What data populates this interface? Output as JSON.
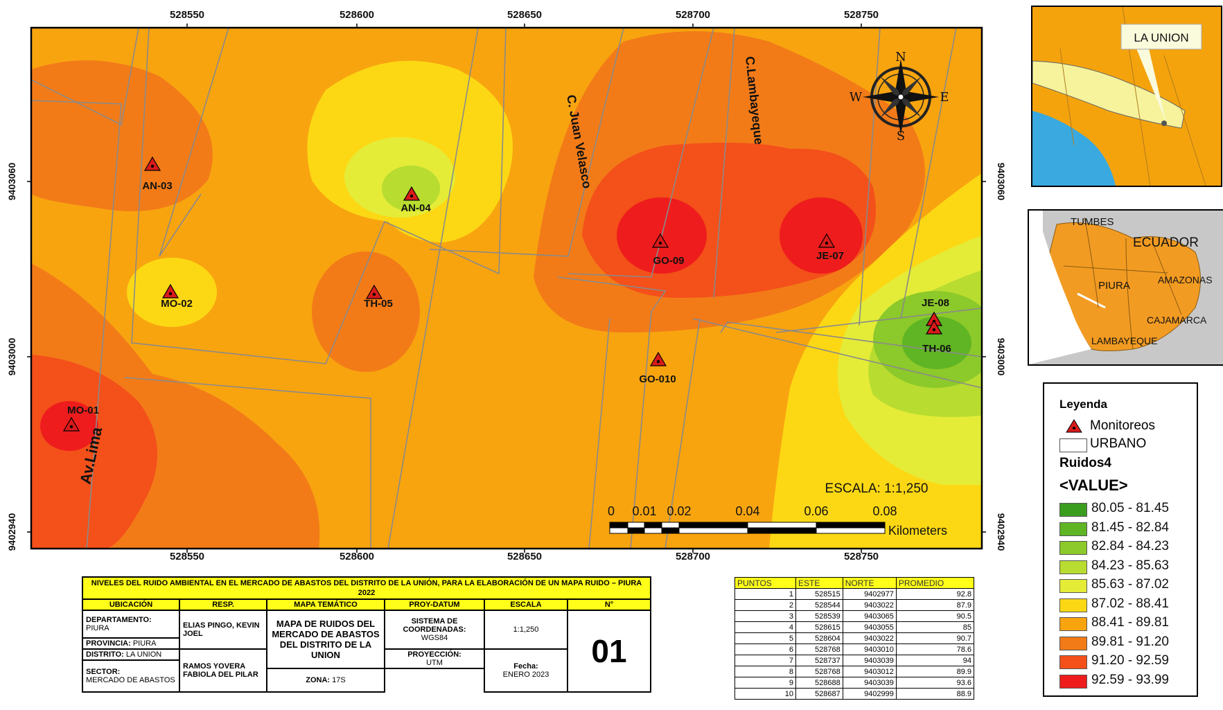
{
  "axes": {
    "x_ticks": [
      "528550",
      "528600",
      "528650",
      "528700",
      "528750"
    ],
    "y_ticks": [
      "9403060",
      "9403000",
      "9402940"
    ]
  },
  "streets": [
    "Av.Lima",
    "C. Juan Velasco",
    "C.Lambayeque"
  ],
  "monitoring_points": [
    {
      "label": "AN-03"
    },
    {
      "label": "AN-04"
    },
    {
      "label": "MO-02"
    },
    {
      "label": "TH-05"
    },
    {
      "label": "GO-09"
    },
    {
      "label": "JE-07"
    },
    {
      "label": "JE-08"
    },
    {
      "label": "TH-06"
    },
    {
      "label": "GO-010"
    },
    {
      "label": "MO-01"
    }
  ],
  "compass": {
    "n": "N",
    "s": "S",
    "e": "E",
    "w": "W"
  },
  "scale": {
    "text": "ESCALA: 1:1,250",
    "labels": [
      "0",
      "0.01",
      "0.02",
      "0.04",
      "0.06",
      "0.08"
    ],
    "unit": "Kilometers"
  },
  "inset_top": {
    "label": "LA UNION"
  },
  "inset_region": {
    "labels": [
      "TUMBES",
      "ECUADOR",
      "PIURA",
      "AMAZONAS",
      "CAJAMARCA",
      "LAMBAYEQUE"
    ]
  },
  "legend": {
    "title": "Leyenda",
    "monitoreos": "Monitoreos",
    "urbano": "URBANO",
    "layer": "Ruidos4",
    "value": "<VALUE>",
    "classes": [
      {
        "label": "80.05 - 81.45",
        "color": "#3a9d1e"
      },
      {
        "label": "81.45 - 82.84",
        "color": "#5fb524"
      },
      {
        "label": "82.84 - 84.23",
        "color": "#8cc92a"
      },
      {
        "label": "84.23 - 85.63",
        "color": "#b8dc30"
      },
      {
        "label": "85.63 - 87.02",
        "color": "#e4ec38"
      },
      {
        "label": "87.02 - 88.41",
        "color": "#fcd814"
      },
      {
        "label": "88.41 - 89.81",
        "color": "#f8a40f"
      },
      {
        "label": "89.81 - 91.20",
        "color": "#f27b18"
      },
      {
        "label": "91.20 - 92.59",
        "color": "#f4501a"
      },
      {
        "label": "92.59 - 93.99",
        "color": "#ee1c1c"
      }
    ]
  },
  "colors": {
    "urban_line": "#8a8a8a",
    "triangle": "#d91a1a",
    "base": "#f8a40f"
  },
  "info_table": {
    "title": "NIVELES DEL RUIDO AMBIENTAL EN EL MERCADO DE ABASTOS DEL DISTRITO DE LA UNIÓN, PARA LA ELABORACIÓN DE UN MAPA RUIDO – PIURA 2022",
    "headers": [
      "UBICACIÓN",
      "RESP.",
      "MAPA TEMÁTICO",
      "PROY-DATUM",
      "ESCALA",
      "N°"
    ],
    "departamento_label": "DEPARTAMENTO:",
    "departamento": "PIURA",
    "provincia_label": "PROVINCIA:",
    "provincia": "PIURA",
    "distrito_label": "DISTRITO:",
    "distrito": "LA UNION",
    "sector_label": "SECTOR:",
    "sector": "MERCADO DE ABASTOS",
    "resp1": "ELIAS PINGO, KEVIN JOEL",
    "resp2": "RAMOS YOVERA FABIOLA DEL PILAR",
    "mapa": "MAPA DE RUIDOS DEL MERCADO DE ABASTOS DEL DISTRITO DE LA UNION",
    "sistema_label": "SISTEMA DE COORDENADAS:",
    "sistema": "WGS84",
    "proyeccion_label": "PROYECCIÓN:",
    "proyeccion": "UTM",
    "zona_label": "ZONA:",
    "zona": "17S",
    "escala": "1:1,250",
    "fecha_label": "Fecha:",
    "fecha": "ENERO 2023",
    "numero": "01"
  },
  "points_table": {
    "headers": [
      "PUNTOS",
      "ESTE",
      "NORTE",
      "PROMEDIO"
    ],
    "rows": [
      [
        "1",
        "528515",
        "9402977",
        "92.8"
      ],
      [
        "2",
        "528544",
        "9403022",
        "87.9"
      ],
      [
        "3",
        "528539",
        "9403065",
        "90.5"
      ],
      [
        "4",
        "528615",
        "9403055",
        "85"
      ],
      [
        "5",
        "528604",
        "9403022",
        "90.7"
      ],
      [
        "6",
        "528768",
        "9403010",
        "78.6"
      ],
      [
        "7",
        "528737",
        "9403039",
        "94"
      ],
      [
        "8",
        "528768",
        "9403012",
        "89.9"
      ],
      [
        "9",
        "528688",
        "9403039",
        "93.6"
      ],
      [
        "10",
        "528687",
        "9402999",
        "88.9"
      ]
    ]
  }
}
